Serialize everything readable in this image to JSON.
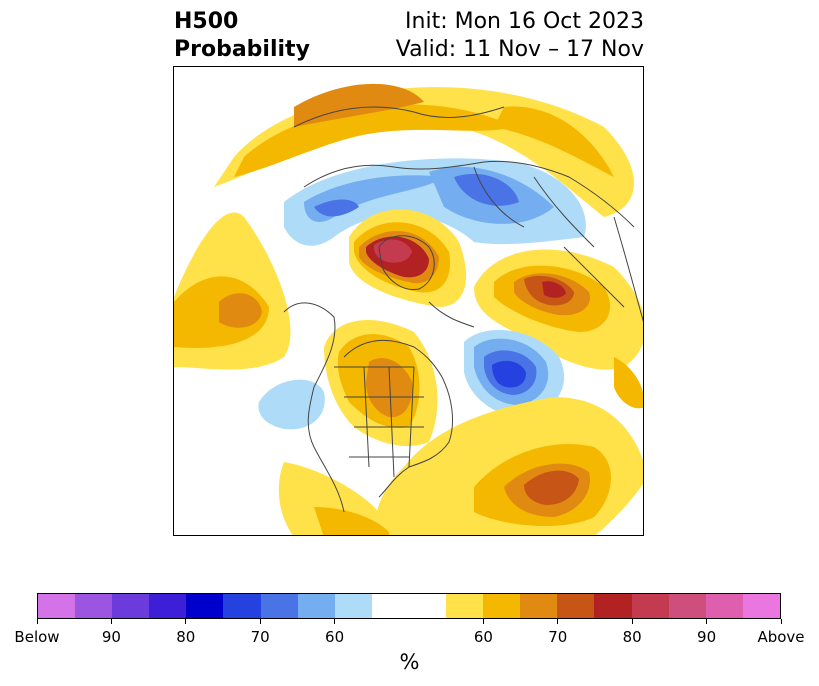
{
  "title": {
    "left_line1": "H500",
    "left_line2": "Probability",
    "right_line1": "Init: Mon 16 Oct 2023",
    "right_line2": "Valid: 11 Nov – 17 Nov"
  },
  "colorbar": {
    "unit": "%",
    "below_colors": [
      "#d472e8",
      "#9b55e0",
      "#6b3bdb",
      "#3c1fd6",
      "#0000cd",
      "#2541e0",
      "#4a74e6",
      "#75aef0",
      "#aedcf8"
    ],
    "neutral_color": "#ffffff",
    "above_colors": [
      "#ffe14a",
      "#f5b800",
      "#e08a12",
      "#c65516",
      "#b22222",
      "#c43a4f",
      "#cf4f7c",
      "#dd5fad",
      "#e977df"
    ],
    "tick_labels": [
      "Below",
      "90",
      "80",
      "70",
      "60",
      "60",
      "70",
      "80",
      "90",
      "Above"
    ]
  }
}
